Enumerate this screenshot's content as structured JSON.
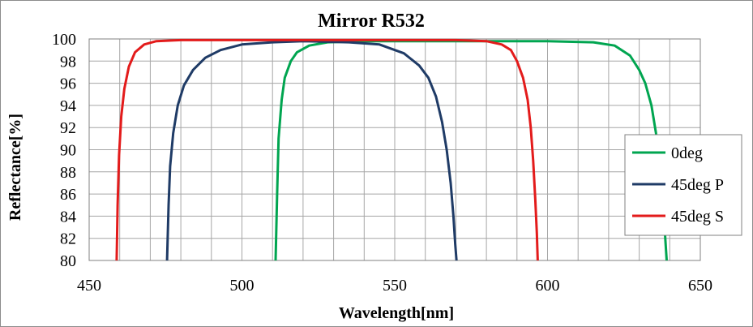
{
  "chart_data": {
    "type": "line",
    "title": "Mirror  R532",
    "xlabel": "Wavelength[nm]",
    "ylabel": "Reflectance[%]",
    "xlim": [
      450,
      650
    ],
    "ylim": [
      80,
      100
    ],
    "x_ticks": [
      450,
      500,
      550,
      600,
      650
    ],
    "y_ticks": [
      80,
      82,
      84,
      86,
      88,
      90,
      92,
      94,
      96,
      98,
      100
    ],
    "x_minor_step": 10,
    "grid": true,
    "legend_position": "right",
    "series": [
      {
        "name": "0deg",
        "color": "#00a550",
        "points": [
          [
            511,
            80
          ],
          [
            511.5,
            86
          ],
          [
            512,
            91
          ],
          [
            513,
            94.5
          ],
          [
            514,
            96.5
          ],
          [
            516,
            98
          ],
          [
            518,
            98.8
          ],
          [
            522,
            99.4
          ],
          [
            528,
            99.7
          ],
          [
            540,
            99.8
          ],
          [
            600,
            99.8
          ],
          [
            615,
            99.7
          ],
          [
            622,
            99.4
          ],
          [
            627,
            98.5
          ],
          [
            630,
            97.2
          ],
          [
            632,
            96
          ],
          [
            634,
            94
          ],
          [
            635.5,
            91.5
          ],
          [
            636.5,
            89
          ],
          [
            637.5,
            86
          ],
          [
            638.3,
            83
          ],
          [
            639,
            80
          ]
        ]
      },
      {
        "name": "45deg P",
        "color": "#1f3b66",
        "points": [
          [
            475.5,
            80
          ],
          [
            476,
            85
          ],
          [
            476.5,
            88.5
          ],
          [
            477.5,
            91.5
          ],
          [
            479,
            94
          ],
          [
            481,
            95.8
          ],
          [
            484,
            97.2
          ],
          [
            488,
            98.3
          ],
          [
            493,
            99
          ],
          [
            500,
            99.5
          ],
          [
            510,
            99.7
          ],
          [
            520,
            99.8
          ],
          [
            535,
            99.7
          ],
          [
            545,
            99.5
          ],
          [
            553,
            98.7
          ],
          [
            558,
            97.6
          ],
          [
            561,
            96.5
          ],
          [
            563.5,
            94.8
          ],
          [
            565.5,
            92.5
          ],
          [
            567,
            90
          ],
          [
            568.3,
            87
          ],
          [
            569.2,
            84
          ],
          [
            569.8,
            81.5
          ],
          [
            570.2,
            80
          ]
        ]
      },
      {
        "name": "45deg S",
        "color": "#e31b1b",
        "points": [
          [
            459,
            80
          ],
          [
            459.3,
            85
          ],
          [
            459.8,
            89.5
          ],
          [
            460.5,
            93
          ],
          [
            461.5,
            95.5
          ],
          [
            463,
            97.5
          ],
          [
            465,
            98.8
          ],
          [
            468,
            99.5
          ],
          [
            472,
            99.8
          ],
          [
            480,
            99.9
          ],
          [
            570,
            99.9
          ],
          [
            580,
            99.8
          ],
          [
            585,
            99.5
          ],
          [
            588,
            99
          ],
          [
            590,
            98
          ],
          [
            592,
            96.5
          ],
          [
            593.5,
            94.5
          ],
          [
            594.5,
            92
          ],
          [
            595.3,
            89
          ],
          [
            596,
            85.5
          ],
          [
            596.5,
            82.5
          ],
          [
            596.8,
            80
          ]
        ]
      }
    ]
  }
}
